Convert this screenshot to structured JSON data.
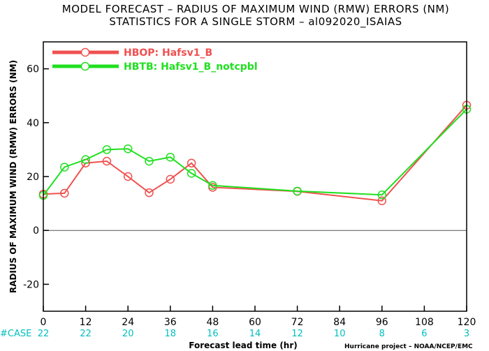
{
  "chart_data": {
    "type": "line",
    "title": "MODEL FORECAST – RADIUS OF MAXIMUM WIND (RMW) ERRORS (NM)",
    "subtitle": "STATISTICS FOR A SINGLE STORM – al092020_ISAIAS",
    "xlabel": "Forecast lead time (hr)",
    "ylabel": "RADIUS OF MAXIMUM WIND (RMW) ERRORS (NM)",
    "xlim": [
      0,
      120
    ],
    "ylim": [
      -30,
      70
    ],
    "xticks": [
      0,
      12,
      24,
      36,
      48,
      60,
      72,
      84,
      96,
      108,
      120
    ],
    "yticks": [
      -20,
      0,
      20,
      40,
      60
    ],
    "case_label": "#CASE",
    "case_counts": [
      "22",
      "22",
      "20",
      "18",
      "16",
      "14",
      "12",
      "10",
      "8",
      "6",
      "3"
    ],
    "credit": "Hurricane project – NOAA/NCEP/EMC",
    "legend_position": "top-left",
    "series": [
      {
        "name": "HBOP: Hafsv1_B",
        "color": "#f05050",
        "x": [
          0,
          6,
          12,
          18,
          24,
          30,
          36,
          42,
          48,
          72,
          96,
          120
        ],
        "values": [
          13.5,
          13.8,
          25,
          25.7,
          20,
          14,
          19,
          25,
          16,
          14.5,
          11,
          46.5
        ]
      },
      {
        "name": "HBTB: Hafsv1_B_notcpbl",
        "color": "#20e020",
        "x": [
          0,
          6,
          12,
          18,
          24,
          30,
          36,
          42,
          48,
          72,
          96,
          120
        ],
        "values": [
          13,
          23.5,
          26.3,
          30,
          30.3,
          25.7,
          27.2,
          21.2,
          16.7,
          14.6,
          13.2,
          45
        ]
      }
    ]
  }
}
